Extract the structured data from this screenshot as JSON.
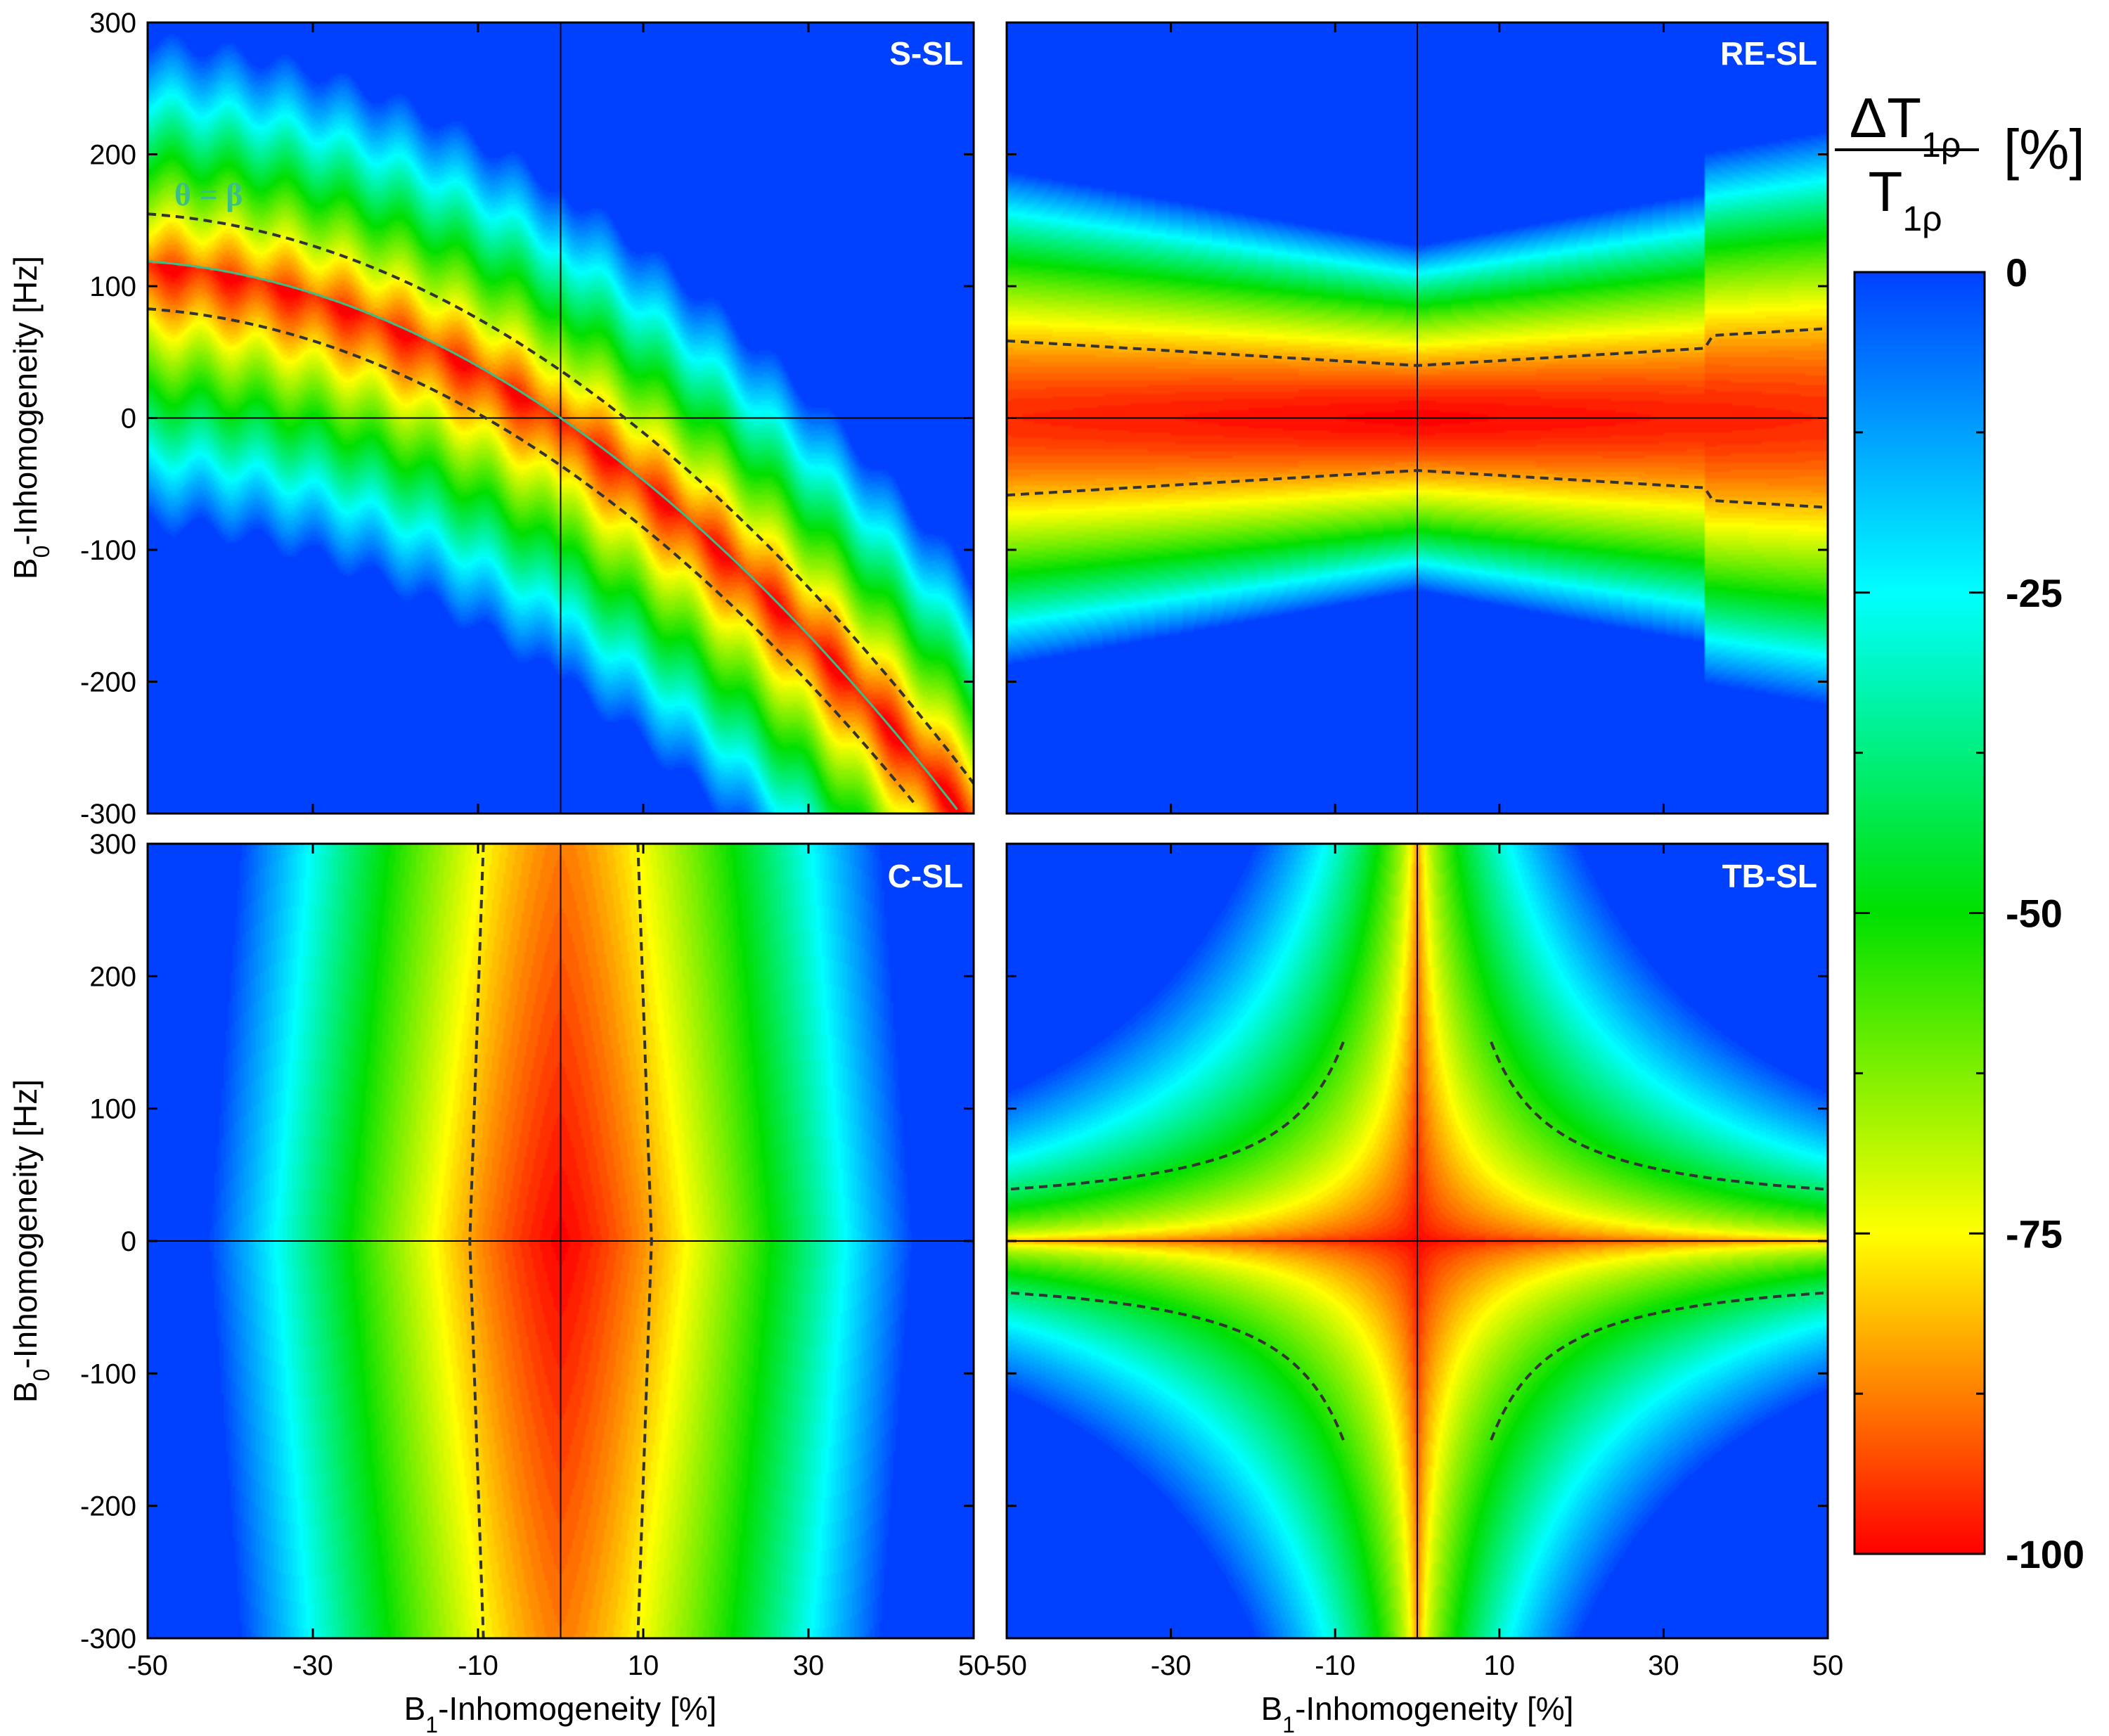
{
  "chart_data": {
    "type": "heatmap",
    "xlabel_main": "B",
    "xlabel_sub": "1",
    "xlabel_rest": "-Inhomogeneity [%]",
    "ylabel_main": "B",
    "ylabel_sub": "0",
    "ylabel_rest": "-Inhomogeneity [Hz]",
    "xlim": [
      -50,
      50
    ],
    "ylim": [
      -300,
      300
    ],
    "x_ticks": [
      "-50",
      "-30",
      "-10",
      "10",
      "30",
      "50"
    ],
    "x_tick_values": [
      -50,
      -30,
      -10,
      10,
      30,
      50
    ],
    "y_ticks": [
      "300",
      "200",
      "100",
      "0",
      "-100",
      "-200",
      "-300"
    ],
    "y_tick_values": [
      300,
      200,
      100,
      0,
      -100,
      -200,
      -300
    ],
    "panels": [
      {
        "label": "S-SL",
        "pattern": "s-sl"
      },
      {
        "label": "RE-SL",
        "pattern": "re-sl"
      },
      {
        "label": "C-SL",
        "pattern": "c-sl"
      },
      {
        "label": "TB-SL",
        "pattern": "tb-sl"
      }
    ],
    "annotation": "θ = β",
    "contour_level": -20,
    "colorbar": {
      "title_delta": "ΔT",
      "title_num_sub": "1ρ",
      "title_den": "T",
      "title_den_sub": "1ρ",
      "unit": "[%]",
      "ticks": [
        "-100",
        "-75",
        "-50",
        "-25",
        "0"
      ],
      "tick_values": [
        -100,
        -75,
        -50,
        -25,
        0
      ],
      "range": [
        -100,
        0
      ],
      "colormap": [
        "#ff0000",
        "#ffff00",
        "#00e000",
        "#00ffff",
        "#0040ff"
      ]
    }
  }
}
